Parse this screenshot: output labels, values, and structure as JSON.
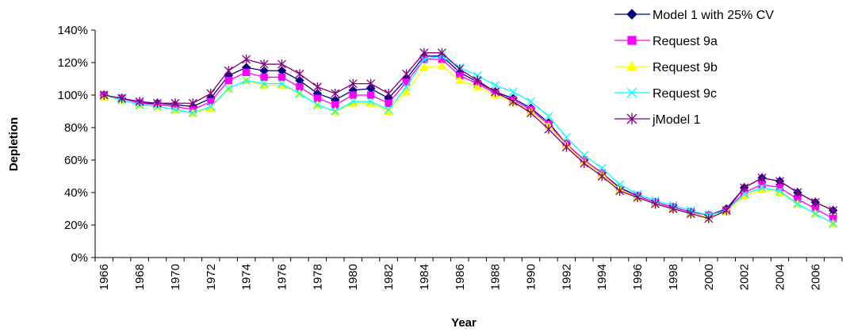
{
  "chart_data": {
    "type": "line",
    "title": "",
    "xlabel": "Year",
    "ylabel": "Depletion",
    "ylim": [
      0,
      140
    ],
    "yticks": [
      "0%",
      "20%",
      "40%",
      "60%",
      "80%",
      "100%",
      "120%",
      "140%"
    ],
    "xlim": [
      1966,
      2007
    ],
    "xtick_labels": [
      "1966",
      "1968",
      "1970",
      "1972",
      "1974",
      "1976",
      "1978",
      "1980",
      "1982",
      "1984",
      "1986",
      "1988",
      "1990",
      "1992",
      "1994",
      "1996",
      "1998",
      "2000",
      "2002",
      "2004",
      "2006"
    ],
    "grid": false,
    "legend_position": "top-right",
    "x": [
      1966,
      1967,
      1968,
      1969,
      1970,
      1971,
      1972,
      1973,
      1974,
      1975,
      1976,
      1977,
      1978,
      1979,
      1980,
      1981,
      1982,
      1983,
      1984,
      1985,
      1986,
      1987,
      1988,
      1989,
      1990,
      1991,
      1992,
      1993,
      1994,
      1995,
      1996,
      1997,
      1998,
      1999,
      2000,
      2001,
      2002,
      2003,
      2004,
      2005,
      2006,
      2007
    ],
    "series": [
      {
        "name": "Model 1 with 25% CV",
        "color": "#000080",
        "marker": "diamond",
        "values": [
          100,
          98,
          95,
          95,
          94,
          93,
          98,
          112,
          117,
          115,
          115,
          109,
          101,
          97,
          103,
          104,
          98,
          110,
          124,
          124,
          114,
          108,
          102,
          98,
          92,
          83,
          70,
          60,
          52,
          43,
          38,
          34,
          31,
          28,
          26,
          30,
          43,
          49,
          47,
          40,
          34,
          29
        ]
      },
      {
        "name": "Request 9a",
        "color": "#ff00ff",
        "marker": "square",
        "values": [
          100,
          98,
          95,
          94,
          93,
          91,
          96,
          109,
          114,
          111,
          111,
          105,
          98,
          94,
          100,
          100,
          95,
          108,
          122,
          122,
          112,
          107,
          101,
          97,
          91,
          82,
          70,
          60,
          52,
          42,
          38,
          34,
          31,
          28,
          26,
          29,
          40,
          45,
          43,
          36,
          30,
          24
        ]
      },
      {
        "name": "Request 9b",
        "color": "#ffff00",
        "marker": "triangle",
        "values": [
          99,
          97,
          94,
          93,
          91,
          89,
          92,
          104,
          109,
          106,
          106,
          101,
          94,
          90,
          95,
          95,
          90,
          102,
          117,
          118,
          109,
          105,
          100,
          96,
          90,
          81,
          69,
          59,
          51,
          42,
          37,
          33,
          30,
          27,
          25,
          28,
          38,
          42,
          40,
          33,
          27,
          21
        ]
      },
      {
        "name": "Request 9c",
        "color": "#00ffff",
        "marker": "x",
        "values": [
          100,
          97,
          94,
          93,
          91,
          89,
          93,
          104,
          109,
          107,
          107,
          101,
          94,
          90,
          96,
          96,
          91,
          105,
          122,
          124,
          117,
          112,
          106,
          102,
          96,
          87,
          74,
          63,
          55,
          45,
          39,
          35,
          32,
          29,
          26,
          29,
          39,
          43,
          41,
          33,
          27,
          21
        ]
      },
      {
        "name": "jModel 1",
        "color": "#800080",
        "marker": "star",
        "values": [
          100,
          98,
          96,
          95,
          95,
          95,
          101,
          115,
          122,
          119,
          119,
          113,
          105,
          101,
          107,
          107,
          101,
          113,
          126,
          126,
          116,
          109,
          102,
          96,
          89,
          79,
          68,
          58,
          50,
          41,
          37,
          33,
          30,
          27,
          24,
          29,
          43,
          49,
          47,
          40,
          34,
          29
        ]
      }
    ]
  }
}
